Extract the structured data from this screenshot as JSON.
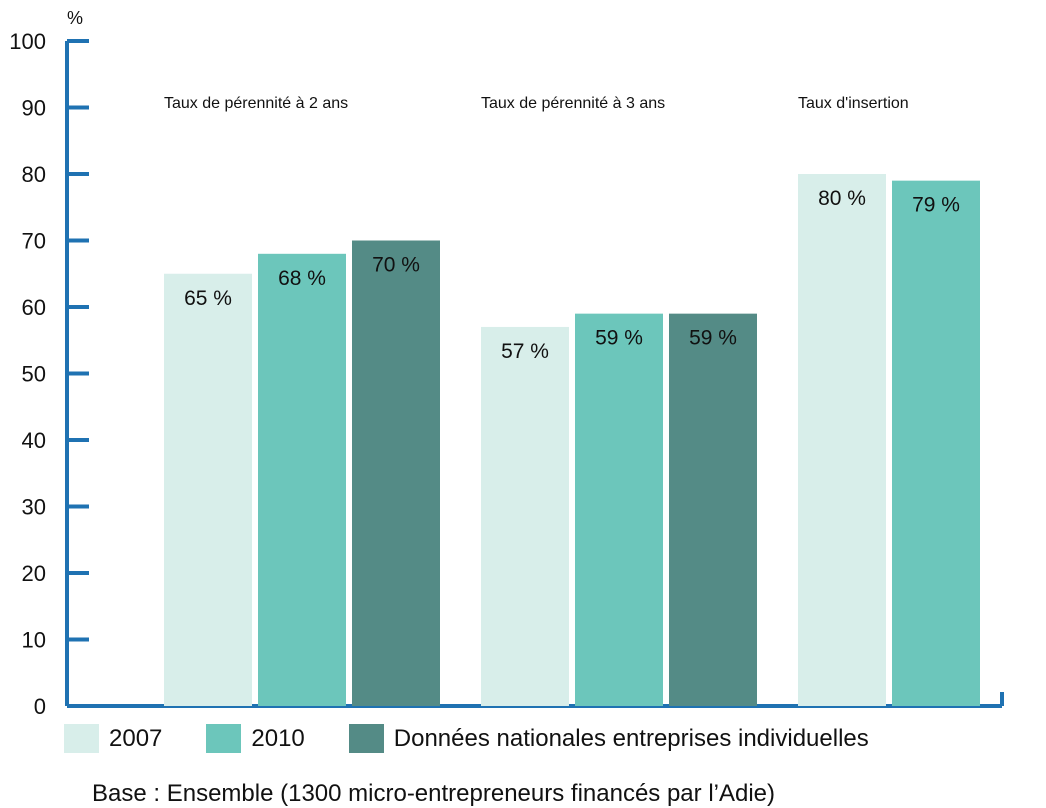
{
  "chart_data": {
    "type": "bar",
    "title": "",
    "y_unit_label": "%",
    "ylim": [
      0,
      100
    ],
    "y_ticks": [
      0,
      10,
      20,
      30,
      40,
      50,
      60,
      70,
      80,
      90,
      100
    ],
    "grid": false,
    "legend_position": "bottom",
    "categories": [
      "Taux de pérennité à 2 ans",
      "Taux de pérennité à 3 ans",
      "Taux  d'insertion"
    ],
    "series": [
      {
        "name": "2007",
        "color": "#d8eeea",
        "values": [
          65,
          57,
          80
        ],
        "labels": [
          "65 %",
          "57 %",
          "80 %"
        ]
      },
      {
        "name": "2010",
        "color": "#6cc6bb",
        "values": [
          68,
          59,
          79
        ],
        "labels": [
          "68 %",
          "59 %",
          "79 %"
        ]
      },
      {
        "name": "Données nationales entreprises individuelles",
        "color": "#548b86",
        "values": [
          70,
          59,
          null
        ],
        "labels": [
          "70 %",
          "59 %",
          null
        ]
      }
    ],
    "axis_color": "#1f72b2",
    "footnote": "Base : Ensemble (1300 micro-entrepreneurs financés par l’Adie)"
  }
}
